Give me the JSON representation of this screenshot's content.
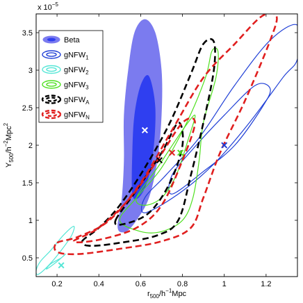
{
  "chart_data": {
    "type": "contour",
    "xlabel_main": "r",
    "xlabel_sub": "500",
    "xlabel_unit": "/h",
    "xlabel_exp": "−1",
    "xlabel_tail": "Mpc",
    "ylabel_main": "Y",
    "ylabel_sub": "500",
    "ylabel_unit": "/h",
    "ylabel_exp": "−2",
    "ylabel_tail": "Mpc",
    "ylabel_exp2": "2",
    "y_multiplier_base": "x 10",
    "y_multiplier_exp": "−5",
    "xlim": [
      0.1,
      1.35
    ],
    "ylim": [
      0.25,
      3.75
    ],
    "xticks": [
      0.2,
      0.4,
      0.6,
      0.8,
      1.0,
      1.2
    ],
    "xtick_labels": [
      "0.2",
      "0.4",
      "0.6",
      "0.8",
      "1",
      "1.2"
    ],
    "yticks": [
      0.5,
      1.0,
      1.5,
      2.0,
      2.5,
      3.0,
      3.5
    ],
    "ytick_labels": [
      "0.5",
      "1",
      "1.5",
      "2",
      "2.5",
      "3",
      "3.5"
    ],
    "series": [
      {
        "name": "Beta",
        "sub": "",
        "style": "filled",
        "color": "#7b7bef",
        "inner_color": "#2f3ff0",
        "best_fit": [
          0.62,
          2.2
        ],
        "marker_color": "#ffffff",
        "outer": [
          [
            0.49,
            0.9
          ],
          [
            0.51,
            1.3
          ],
          [
            0.52,
            1.8
          ],
          [
            0.52,
            2.4
          ],
          [
            0.54,
            3.0
          ],
          [
            0.57,
            3.5
          ],
          [
            0.62,
            3.68
          ],
          [
            0.67,
            3.5
          ],
          [
            0.7,
            3.0
          ],
          [
            0.7,
            2.4
          ],
          [
            0.68,
            1.8
          ],
          [
            0.64,
            1.3
          ],
          [
            0.58,
            1.0
          ],
          [
            0.53,
            0.85
          ]
        ],
        "inner": [
          [
            0.56,
            1.35
          ],
          [
            0.56,
            1.9
          ],
          [
            0.57,
            2.4
          ],
          [
            0.6,
            2.8
          ],
          [
            0.64,
            2.92
          ],
          [
            0.67,
            2.5
          ],
          [
            0.66,
            1.9
          ],
          [
            0.63,
            1.5
          ],
          [
            0.59,
            1.3
          ]
        ]
      },
      {
        "name": "gNFW",
        "sub": "1",
        "style": "solid",
        "color": "#1f3fd6",
        "best_fit": [
          1.0,
          2.0
        ],
        "marker_color": "#1f3fd6",
        "outer": [
          [
            0.62,
            1.1
          ],
          [
            0.78,
            1.35
          ],
          [
            0.95,
            1.75
          ],
          [
            1.12,
            2.3
          ],
          [
            1.28,
            2.9
          ],
          [
            1.35,
            3.15
          ],
          [
            1.35,
            3.6
          ],
          [
            1.22,
            3.4
          ],
          [
            1.05,
            2.8
          ],
          [
            0.88,
            2.1
          ],
          [
            0.72,
            1.6
          ],
          [
            0.62,
            1.3
          ]
        ],
        "inner": [
          [
            0.75,
            1.35
          ],
          [
            0.9,
            1.65
          ],
          [
            1.05,
            2.0
          ],
          [
            1.18,
            2.5
          ],
          [
            1.22,
            2.75
          ],
          [
            1.15,
            2.8
          ],
          [
            1.0,
            2.4
          ],
          [
            0.85,
            1.95
          ],
          [
            0.75,
            1.6
          ]
        ]
      },
      {
        "name": "gNFW",
        "sub": "2",
        "style": "solid",
        "color": "#55e6d6",
        "best_fit": [
          0.22,
          0.4
        ],
        "marker_color": "#55e6d6",
        "outer": [
          [
            0.11,
            0.28
          ],
          [
            0.16,
            0.4
          ],
          [
            0.22,
            0.6
          ],
          [
            0.27,
            0.8
          ],
          [
            0.28,
            0.92
          ],
          [
            0.23,
            0.8
          ],
          [
            0.17,
            0.6
          ],
          [
            0.12,
            0.45
          ],
          [
            0.1,
            0.33
          ]
        ],
        "inner": [
          [
            0.15,
            0.35
          ],
          [
            0.2,
            0.45
          ],
          [
            0.24,
            0.55
          ],
          [
            0.22,
            0.5
          ],
          [
            0.17,
            0.42
          ]
        ]
      },
      {
        "name": "gNFW",
        "sub": "3",
        "style": "solid",
        "color": "#4fe01f",
        "best_fit": [
          0.79,
          1.9
        ],
        "marker_color": "#4fe01f",
        "outer": [
          [
            0.5,
            1.0
          ],
          [
            0.58,
            1.3
          ],
          [
            0.7,
            1.7
          ],
          [
            0.82,
            2.3
          ],
          [
            0.91,
            2.9
          ],
          [
            0.94,
            3.25
          ],
          [
            0.97,
            3.25
          ],
          [
            0.96,
            2.9
          ],
          [
            0.9,
            2.3
          ],
          [
            0.88,
            1.8
          ],
          [
            0.85,
            1.3
          ],
          [
            0.8,
            1.0
          ],
          [
            0.7,
            0.85
          ],
          [
            0.6,
            0.85
          ]
        ],
        "inner": [
          [
            0.58,
            1.3
          ],
          [
            0.68,
            1.7
          ],
          [
            0.8,
            2.2
          ],
          [
            0.86,
            2.4
          ],
          [
            0.83,
            2.1
          ],
          [
            0.77,
            1.6
          ],
          [
            0.7,
            1.3
          ],
          [
            0.62,
            1.2
          ]
        ]
      },
      {
        "name": "gNFW",
        "sub": "A",
        "style": "dashed",
        "color": "#000000",
        "best_fit": [
          0.69,
          1.8
        ],
        "marker_color": "#000000",
        "outer": [
          [
            0.32,
            0.72
          ],
          [
            0.4,
            0.9
          ],
          [
            0.5,
            1.2
          ],
          [
            0.62,
            1.7
          ],
          [
            0.74,
            2.3
          ],
          [
            0.84,
            2.95
          ],
          [
            0.9,
            3.35
          ],
          [
            0.95,
            3.38
          ],
          [
            0.95,
            3.0
          ],
          [
            0.9,
            2.3
          ],
          [
            0.84,
            1.6
          ],
          [
            0.78,
            1.0
          ],
          [
            0.68,
            0.8
          ],
          [
            0.5,
            0.7
          ],
          [
            0.36,
            0.66
          ]
        ],
        "inner": [
          [
            0.48,
            1.0
          ],
          [
            0.58,
            1.4
          ],
          [
            0.7,
            1.9
          ],
          [
            0.78,
            2.3
          ],
          [
            0.8,
            2.0
          ],
          [
            0.74,
            1.5
          ],
          [
            0.64,
            1.1
          ],
          [
            0.52,
            0.95
          ]
        ]
      },
      {
        "name": "gNFW",
        "sub": "N",
        "style": "dashed",
        "color": "#e01f1f",
        "best_fit": [
          0.75,
          1.9
        ],
        "marker_color": "#e01f1f",
        "outer": [
          [
            0.2,
            0.7
          ],
          [
            0.3,
            0.78
          ],
          [
            0.45,
            1.0
          ],
          [
            0.6,
            1.5
          ],
          [
            0.75,
            2.2
          ],
          [
            0.9,
            2.9
          ],
          [
            1.05,
            3.35
          ],
          [
            1.18,
            3.72
          ],
          [
            1.25,
            3.72
          ],
          [
            1.22,
            3.4
          ],
          [
            1.1,
            2.6
          ],
          [
            0.98,
            1.9
          ],
          [
            0.9,
            1.3
          ],
          [
            0.84,
            0.9
          ],
          [
            0.7,
            0.72
          ],
          [
            0.5,
            0.62
          ],
          [
            0.3,
            0.55
          ],
          [
            0.2,
            0.58
          ]
        ],
        "inner": [
          [
            0.28,
            0.72
          ],
          [
            0.4,
            0.9
          ],
          [
            0.55,
            1.3
          ],
          [
            0.68,
            1.8
          ],
          [
            0.8,
            2.3
          ],
          [
            0.86,
            2.3
          ],
          [
            0.8,
            1.8
          ],
          [
            0.7,
            1.2
          ],
          [
            0.58,
            0.9
          ],
          [
            0.4,
            0.74
          ]
        ]
      }
    ]
  }
}
